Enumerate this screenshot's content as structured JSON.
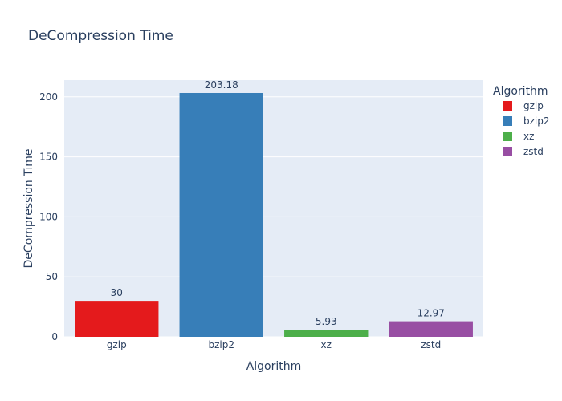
{
  "chart_data": {
    "type": "bar",
    "title": "DeCompression Time",
    "xlabel": "Algorithm",
    "ylabel": "DeCompression Time",
    "categories": [
      "gzip",
      "bzip2",
      "xz",
      "zstd"
    ],
    "values": [
      30,
      203.18,
      5.93,
      12.97
    ],
    "value_labels": [
      "30",
      "203.18",
      "5.93",
      "12.97"
    ],
    "colors": [
      "#e41a1c",
      "#377eb8",
      "#4daf4a",
      "#984ea3"
    ],
    "ylim": [
      0,
      213.87
    ],
    "yticks": [
      0,
      50,
      100,
      150,
      200
    ],
    "grid": true,
    "legend": {
      "title": "Algorithm",
      "placement": "right",
      "items": [
        "gzip",
        "bzip2",
        "xz",
        "zstd"
      ]
    }
  },
  "style": {
    "plot_background": "#e5ecf6",
    "grid_color": "#ffffff",
    "text_color": "#2a3f5f"
  }
}
